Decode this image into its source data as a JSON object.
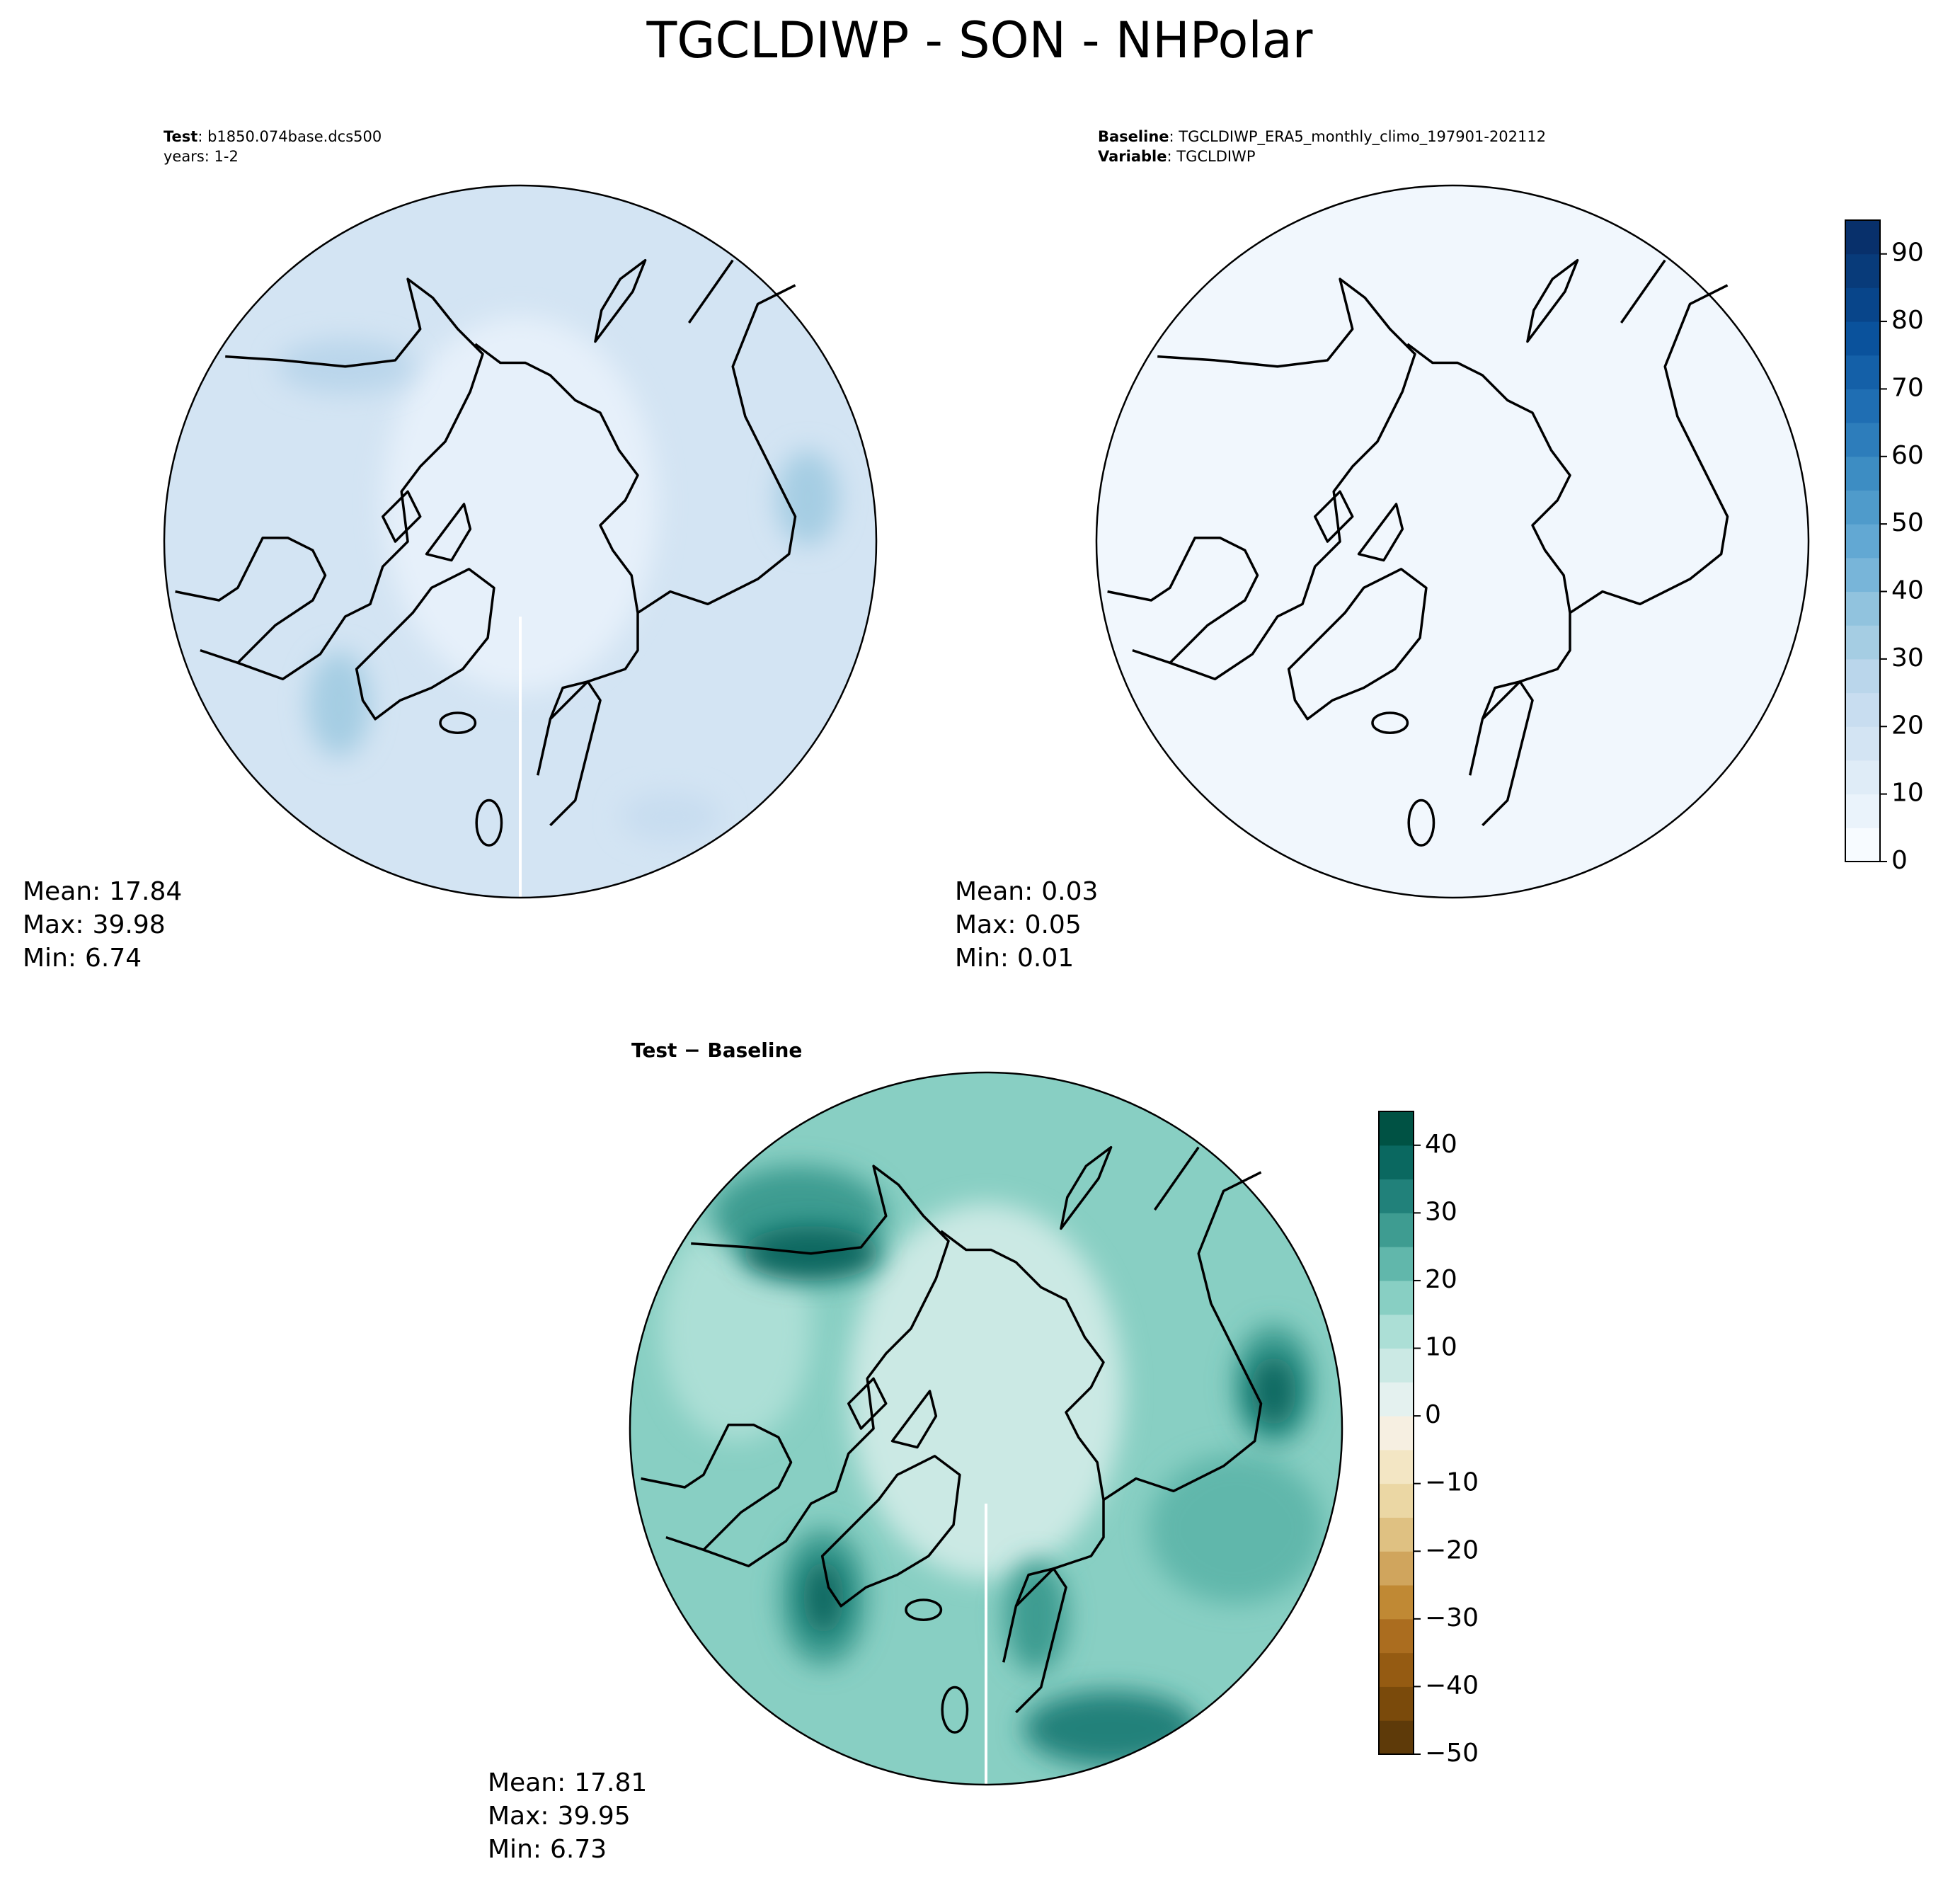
{
  "title": "TGCLDIWP - SON - NHPolar",
  "panels": [
    {
      "header": [
        {
          "bold": "Test",
          "text": ": b1850.074base.dcs500"
        },
        {
          "text": "years: 1-2"
        }
      ],
      "stats": [
        {
          "label": "Mean:",
          "value": 17.84
        },
        {
          "label": "Max:",
          "value": 39.98
        },
        {
          "label": "Min:",
          "value": 6.74
        }
      ]
    },
    {
      "header": [
        {
          "bold": "Baseline",
          "text": ": TGCLDIWP_ERA5_monthly_climo_197901-202112"
        },
        {
          "bold": "Variable",
          "text": ": TGCLDIWP"
        }
      ],
      "stats": [
        {
          "label": "Mean:",
          "value": 0.03
        },
        {
          "label": "Max:",
          "value": 0.05
        },
        {
          "label": "Min:",
          "value": 0.01
        }
      ],
      "colorbar": {
        "lim": [
          0,
          95
        ],
        "ticks": [
          0,
          10,
          20,
          30,
          40,
          50,
          60,
          70,
          80,
          90
        ],
        "colors": [
          "#f7fbff",
          "#eaf3fb",
          "#dfecf7",
          "#d3e4f3",
          "#c8ddf0",
          "#bad6eb",
          "#a5cde3",
          "#91c3de",
          "#78b5d9",
          "#62a8d3",
          "#4f9bcb",
          "#3d8dc3",
          "#2d7dbb",
          "#1f6eb3",
          "#1460a8",
          "#0a529c",
          "#08458a",
          "#083b7a",
          "#08306b"
        ]
      }
    },
    {
      "title": "Test − Baseline",
      "stats": [
        {
          "label": "Mean:",
          "value": 17.81
        },
        {
          "label": "Max:",
          "value": 39.95
        },
        {
          "label": "Min:",
          "value": 6.73
        }
      ],
      "colorbar": {
        "lim": [
          -50,
          45
        ],
        "ticks": [
          {
            "value": -50,
            "label": "−50"
          },
          {
            "value": -40,
            "label": "−40"
          },
          {
            "value": -30,
            "label": "−30"
          },
          {
            "value": -20,
            "label": "−20"
          },
          {
            "value": -10,
            "label": "−10"
          },
          0,
          10,
          20,
          30,
          40
        ],
        "colors": [
          "#5e3a09",
          "#7a4a0b",
          "#955b12",
          "#ab6d1f",
          "#c08934",
          "#d0a55d",
          "#dfc182",
          "#ebd7a4",
          "#f3e6c4",
          "#f6efe1",
          "#e4f1ef",
          "#cbe9e4",
          "#acdfd6",
          "#88cfc3",
          "#61b7ab",
          "#3e9c91",
          "#21817a",
          "#0a6860",
          "#005244"
        ]
      }
    }
  ]
}
